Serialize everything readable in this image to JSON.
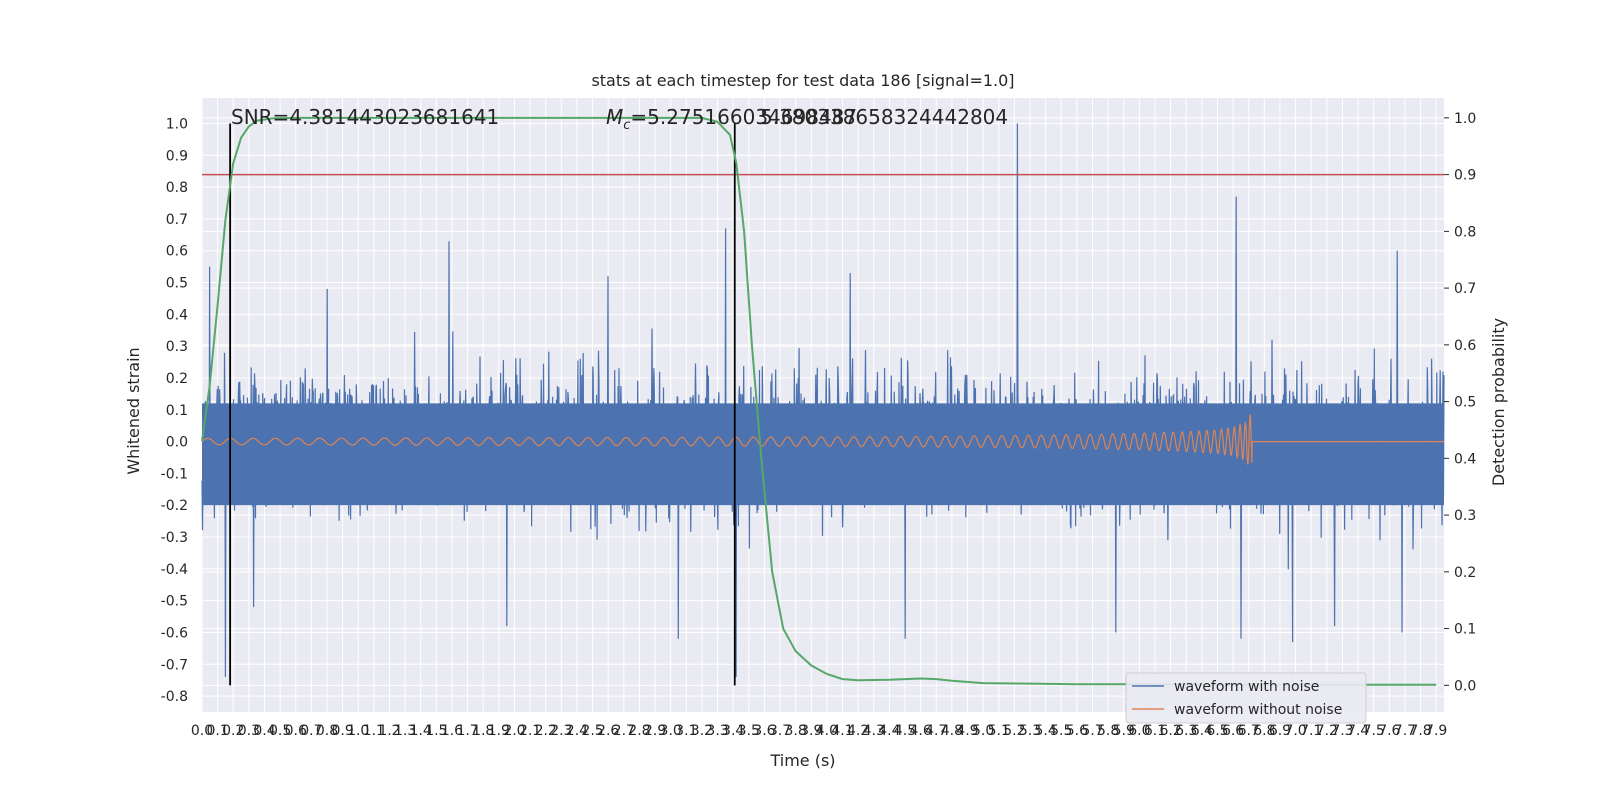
{
  "chart_data": {
    "type": "line",
    "title": "stats at each timestep for test data 186 [signal=1.0]",
    "xlabel": "Time (s)",
    "ylabel": "Whitened strain",
    "y2label": "Detection probability",
    "xlim": [
      0.0,
      7.95
    ],
    "ylim": [
      -0.85,
      1.08
    ],
    "y2lim": [
      -0.047,
      1.035
    ],
    "x_ticks": [
      "0.0",
      "0.1",
      "0.2",
      "0.3",
      "0.4",
      "0.5",
      "0.6",
      "0.7",
      "0.8",
      "0.9",
      "1.0",
      "1.1",
      "1.2",
      "1.3",
      "1.4",
      "1.5",
      "1.6",
      "1.7",
      "1.8",
      "1.9",
      "2.0",
      "2.1",
      "2.2",
      "2.3",
      "2.4",
      "2.5",
      "2.6",
      "2.7",
      "2.8",
      "2.9",
      "3.0",
      "3.1",
      "3.2",
      "3.3",
      "3.4",
      "3.5",
      "3.6",
      "3.7",
      "3.8",
      "3.9",
      "4.0",
      "4.1",
      "4.2",
      "4.3",
      "4.4",
      "4.5",
      "4.6",
      "4.7",
      "4.8",
      "4.9",
      "5.0",
      "5.1",
      "5.2",
      "5.3",
      "5.4",
      "5.5",
      "5.6",
      "5.7",
      "5.8",
      "5.9",
      "6.0",
      "6.1",
      "6.2",
      "6.3",
      "6.4",
      "6.5",
      "6.6",
      "6.7",
      "6.8",
      "6.9",
      "7.0",
      "7.1",
      "7.2",
      "7.3",
      "7.4",
      "7.5",
      "7.6",
      "7.7",
      "7.8",
      "7.9"
    ],
    "y_ticks": [
      "1.0",
      "0.9",
      "0.8",
      "0.7",
      "0.6",
      "0.5",
      "0.4",
      "0.3",
      "0.2",
      "0.1",
      "0.0",
      "-0.1",
      "-0.2",
      "-0.3",
      "-0.4",
      "-0.5",
      "-0.6",
      "-0.7",
      "-0.8"
    ],
    "y2_ticks": [
      "1.0",
      "0.9",
      "0.8",
      "0.7",
      "0.6",
      "0.5",
      "0.4",
      "0.3",
      "0.2",
      "0.1",
      "0.0"
    ],
    "annotations": {
      "snr": "SNR=4.381443023681641",
      "mc": "=5.275166034698487",
      "mc_symbol": "M",
      "mc_sub": "c",
      "overlap": "5.380338658324442804"
    },
    "threshold_y2": 0.9,
    "vlines_x": [
      0.18,
      3.41
    ],
    "series": [
      {
        "name": "waveform with noise",
        "color": "#4c72b0",
        "spikes": [
          [
            0.05,
            0.55
          ],
          [
            0.15,
            -0.74
          ],
          [
            0.33,
            -0.52
          ],
          [
            0.8,
            0.48
          ],
          [
            1.58,
            0.63
          ],
          [
            1.95,
            -0.58
          ],
          [
            2.6,
            0.52
          ],
          [
            3.05,
            -0.62
          ],
          [
            3.35,
            0.67
          ],
          [
            3.42,
            -0.74
          ],
          [
            4.15,
            0.53
          ],
          [
            4.5,
            -0.62
          ],
          [
            5.22,
            1.0
          ],
          [
            5.85,
            -0.6
          ],
          [
            6.62,
            0.77
          ],
          [
            6.65,
            -0.62
          ],
          [
            6.98,
            -0.63
          ],
          [
            7.25,
            -0.58
          ],
          [
            7.65,
            0.6
          ],
          [
            7.68,
            -0.6
          ]
        ]
      },
      {
        "name": "waveform without noise",
        "color": "#dd8452",
        "merger_x": 6.72,
        "envelope": [
          [
            0.0,
            0.01
          ],
          [
            1.0,
            0.011
          ],
          [
            2.0,
            0.012
          ],
          [
            3.0,
            0.013
          ],
          [
            4.0,
            0.015
          ],
          [
            4.5,
            0.016
          ],
          [
            5.0,
            0.018
          ],
          [
            5.5,
            0.021
          ],
          [
            6.0,
            0.026
          ],
          [
            6.3,
            0.031
          ],
          [
            6.5,
            0.037
          ],
          [
            6.6,
            0.045
          ],
          [
            6.68,
            0.06
          ],
          [
            6.72,
            0.095
          ]
        ]
      }
    ],
    "detection_probability": {
      "name": "detection probability",
      "color": "#55a868",
      "points": [
        [
          0.0,
          0.43
        ],
        [
          0.05,
          0.53
        ],
        [
          0.1,
          0.67
        ],
        [
          0.15,
          0.82
        ],
        [
          0.2,
          0.92
        ],
        [
          0.25,
          0.965
        ],
        [
          0.3,
          0.985
        ],
        [
          0.35,
          0.995
        ],
        [
          0.45,
          0.999
        ],
        [
          0.6,
          1.0
        ],
        [
          3.2,
          1.0
        ],
        [
          3.3,
          0.993
        ],
        [
          3.38,
          0.97
        ],
        [
          3.42,
          0.92
        ],
        [
          3.47,
          0.8
        ],
        [
          3.52,
          0.6
        ],
        [
          3.58,
          0.4
        ],
        [
          3.65,
          0.2
        ],
        [
          3.72,
          0.1
        ],
        [
          3.8,
          0.06
        ],
        [
          3.9,
          0.035
        ],
        [
          4.0,
          0.02
        ],
        [
          4.1,
          0.011
        ],
        [
          4.2,
          0.009
        ],
        [
          4.4,
          0.01
        ],
        [
          4.6,
          0.012
        ],
        [
          4.7,
          0.011
        ],
        [
          4.8,
          0.008
        ],
        [
          5.0,
          0.004
        ],
        [
          5.3,
          0.003
        ],
        [
          5.6,
          0.002
        ],
        [
          6.0,
          0.002
        ],
        [
          6.5,
          0.001
        ],
        [
          7.0,
          0.001
        ],
        [
          7.9,
          0.001
        ]
      ]
    },
    "legend": {
      "position": "lower-right",
      "entries": [
        "waveform with noise",
        "waveform without noise"
      ]
    },
    "grid": true,
    "colors": {
      "axes_bg": "#eaeaf2",
      "grid": "#ffffff",
      "threshold": "#c44e52",
      "vline": "#000000"
    }
  }
}
